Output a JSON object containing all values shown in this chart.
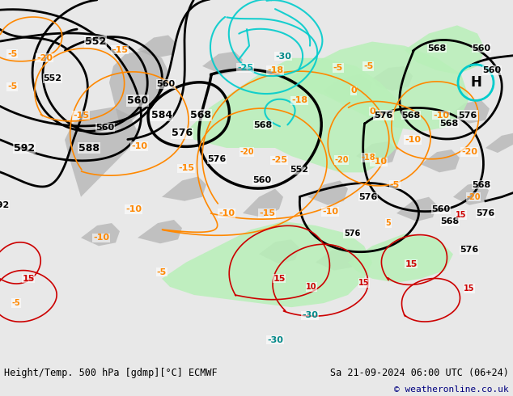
{
  "title_left": "Height/Temp. 500 hPa [gdmp][°C] ECMWF",
  "title_right": "Sa 21-09-2024 06:00 UTC (06+24)",
  "copyright": "© weatheronline.co.uk",
  "bg_color": "#d8d8d8",
  "map_bg_color": "#d0d0d0",
  "green_fill_color": "#b8f0b8",
  "footer_bg": "#e8e8e8",
  "text_color_black": "#000000",
  "text_color_orange": "#ff8800",
  "text_color_red": "#cc0000",
  "text_color_cyan": "#00cccc",
  "text_color_blue": "#000080",
  "contour_black": "#000000",
  "contour_orange": "#ff8800",
  "contour_red": "#cc0000",
  "contour_cyan": "#00cccc"
}
